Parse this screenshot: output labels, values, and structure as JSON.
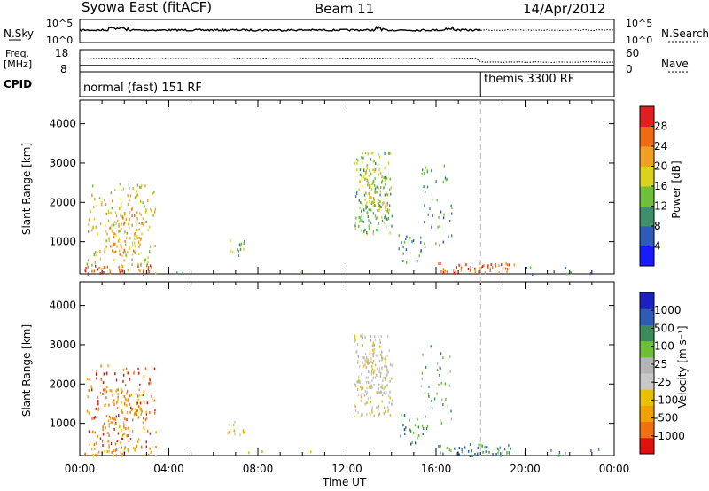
{
  "header": {
    "title": "Syowa East (fitACF)",
    "beam": "Beam 11",
    "date": "14/Apr/2012"
  },
  "sky_panel": {
    "left_label": "N.Sky",
    "left_ticks": [
      "10^5",
      "10^0"
    ],
    "right_ticks": [
      "10^5",
      "10^0"
    ],
    "right_label": "N.Search"
  },
  "freq_panel": {
    "left_label_1": "Freq.",
    "left_label_2": "[MHz]",
    "left_ticks": [
      "18",
      "8"
    ],
    "right_ticks": [
      "60",
      "0"
    ],
    "right_label": "Nave"
  },
  "cpid_panel": {
    "label": "CPID",
    "mode_1": "normal (fast) 151 RF",
    "mode_2": "themis 3300 RF"
  },
  "colors": {
    "power": [
      "#1a1aff",
      "#2c5cb8",
      "#3f8f6a",
      "#6fbf3a",
      "#dcd21a",
      "#f0a020",
      "#f06a10",
      "#e02020"
    ],
    "velocity": [
      "#e01010",
      "#f07010",
      "#f0a000",
      "#e8c000",
      "#c8c8c8",
      "#b4b4b4",
      "#6cc038",
      "#3c8c5a",
      "#2c5cb8",
      "#1c20c0"
    ]
  },
  "chart_data": [
    {
      "type": "heatmap",
      "name": "power",
      "ylabel": "Slant Range [km]",
      "y_ticks": [
        1000,
        2000,
        3000,
        4000
      ],
      "ylim": [
        180,
        4600
      ],
      "xlim_hours": [
        0,
        24
      ],
      "colorbar_label": "Power [dB]",
      "colorbar_ticks": [
        4,
        8,
        12,
        16,
        20,
        24,
        28
      ]
    },
    {
      "type": "heatmap",
      "name": "velocity",
      "ylabel": "Slant Range [km]",
      "y_ticks": [
        1000,
        2000,
        3000,
        4000
      ],
      "ylim": [
        180,
        4600
      ],
      "xlim_hours": [
        0,
        24
      ],
      "xlabel": "Time UT",
      "x_ticks": [
        "00:00",
        "04:00",
        "08:00",
        "12:00",
        "16:00",
        "20:00",
        "00:00"
      ],
      "colorbar_label": "Velocity [m s⁻¹]",
      "colorbar_ticks": [
        "1000",
        "500",
        "100",
        "25",
        "-25",
        "-100",
        "-500",
        "-1000"
      ]
    }
  ]
}
